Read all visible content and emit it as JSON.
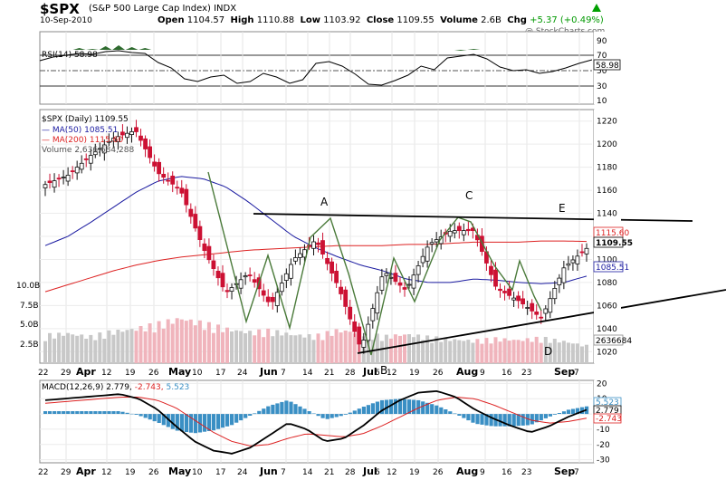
{
  "header": {
    "symbol": "$SPX",
    "name": "(S&P 500 Large Cap Index)",
    "exchange": "INDX",
    "date": "10-Sep-2010",
    "open_label": "Open",
    "open": "1104.57",
    "high_label": "High",
    "high": "1110.88",
    "low_label": "Low",
    "low": "1103.92",
    "close_label": "Close",
    "close": "1109.55",
    "volume_label": "Volume",
    "volume": "2.6B",
    "chg_label": "Chg",
    "chg": "+5.37 (+0.49%)",
    "watermark": "@ StockCharts.com",
    "up_color": "#00a000"
  },
  "rsi": {
    "legend": "RSI(14) 58.98",
    "value_label": "58.98",
    "ticks": [
      "90",
      "70",
      "50",
      "30",
      "10"
    ]
  },
  "main": {
    "legend": "$SPX (Daily) 1109.55",
    "ma50_legend": "MA(50) 1085.51",
    "ma200_legend": "MA(200) 1115.60",
    "volume_legend": "Volume 2,636,684,288",
    "price_ticks": [
      "1220",
      "1200",
      "1180",
      "1160",
      "1140",
      "1120",
      "1100",
      "1080",
      "1060",
      "1040",
      "1020"
    ],
    "volume_ticks": [
      "10.0B",
      "7.5B",
      "5.0B",
      "2.5B"
    ],
    "ma200_label": "1115.60",
    "close_label": "1109.55",
    "ma50_label": "1085.51",
    "volume_label": "2636684",
    "annotations": [
      "A",
      "B",
      "C",
      "D",
      "E"
    ],
    "colors": {
      "ma50": "#1a1aa0",
      "ma200": "#dd2222",
      "up": "#111111",
      "down": "#cc1133",
      "pattern": "#4a7a3a"
    }
  },
  "macd": {
    "legend": "MACD(12,26,9) 2.779, -2.743, 5.523",
    "legend_name": "MACD(12,26,9)",
    "legend_v1": "2.779,",
    "legend_v2": "-2.743,",
    "legend_v3": "5.523",
    "ticks": [
      "20",
      "10",
      "0",
      "-10",
      "-20",
      "-30"
    ],
    "hist_label": "5.523",
    "macd_label": "2.779",
    "signal_label": "-2.743"
  },
  "x_axis_labels": [
    "22",
    "29",
    "Apr",
    "12",
    "19",
    "26",
    "May",
    "10",
    "17",
    "24",
    "Jun",
    "7",
    "14",
    "21",
    "28",
    "Jul",
    "6",
    "12",
    "19",
    "26",
    "Aug",
    "9",
    "16",
    "23",
    "Sep",
    "7"
  ],
  "chart_data": [
    {
      "type": "line",
      "title": "RSI(14) 58.98",
      "ylim": [
        10,
        90
      ],
      "series": [
        {
          "name": "RSI(14)",
          "values": [
            58,
            62,
            64,
            66,
            65,
            68,
            69,
            67,
            66,
            56,
            50,
            38,
            35,
            40,
            42,
            33,
            35,
            44,
            40,
            33,
            37,
            55,
            57,
            52,
            43,
            32,
            31,
            36,
            42,
            52,
            48,
            61,
            63,
            65,
            60,
            51,
            47,
            48,
            44,
            46,
            50,
            55,
            59
          ]
        }
      ]
    },
    {
      "type": "line",
      "title": "$SPX (Daily) 1109.55",
      "ylim": [
        1010,
        1230
      ],
      "x": [
        "Mar 22",
        "Mar 29",
        "Apr 12",
        "Apr 19",
        "Apr 26",
        "May 3",
        "May 10",
        "May 17",
        "May 24",
        "Jun 1",
        "Jun 7",
        "Jun 14",
        "Jun 21",
        "Jun 28",
        "Jul 6",
        "Jul 12",
        "Jul 19",
        "Jul 26",
        "Aug 2",
        "Aug 9",
        "Aug 16",
        "Aug 23",
        "Aug 30",
        "Sep 7",
        "Sep 10"
      ],
      "series": [
        {
          "name": "$SPX",
          "values": [
            1165,
            1173,
            1190,
            1205,
            1212,
            1175,
            1160,
            1110,
            1071,
            1088,
            1060,
            1100,
            1117,
            1076,
            1022,
            1090,
            1073,
            1113,
            1125,
            1125,
            1075,
            1064,
            1049,
            1093,
            1109.55
          ]
        },
        {
          "name": "MA(50)",
          "values": [
            1112,
            1120,
            1132,
            1145,
            1158,
            1168,
            1172,
            1170,
            1163,
            1150,
            1135,
            1120,
            1110,
            1102,
            1095,
            1090,
            1083,
            1080,
            1080,
            1083,
            1082,
            1080,
            1079,
            1080,
            1085.51
          ]
        },
        {
          "name": "MA(200)",
          "values": [
            1072,
            1078,
            1084,
            1090,
            1095,
            1099,
            1102,
            1104,
            1106,
            1108,
            1109,
            1110,
            1111,
            1112,
            1112,
            1112,
            1113,
            1113,
            1114,
            1115,
            1115,
            1115,
            1116,
            1116,
            1115.6
          ]
        }
      ]
    },
    {
      "type": "bar",
      "title": "Volume 2,636,684,288",
      "ylim": [
        0,
        12.5
      ],
      "values": [
        4.2,
        4.5,
        4.0,
        4.8,
        5.2,
        5.9,
        6.8,
        6.0,
        5.2,
        4.7,
        4.9,
        4.3,
        4.1,
        5.0,
        4.6,
        4.0,
        4.4,
        3.9,
        3.6,
        3.4,
        3.7,
        3.5,
        3.8,
        3.3,
        2.64
      ]
    },
    {
      "type": "line",
      "title": "MACD(12,26,9) 2.779, -2.743, 5.523",
      "ylim": [
        -32,
        22
      ],
      "series": [
        {
          "name": "MACD",
          "values": [
            9,
            10,
            11,
            12,
            13,
            10,
            3,
            -8,
            -18,
            -24,
            -26,
            -22,
            -14,
            -6,
            -10,
            -18,
            -16,
            -8,
            2,
            9,
            14,
            15,
            11,
            3,
            -3,
            -8,
            -12,
            -8,
            -2,
            2.779
          ]
        },
        {
          "name": "Signal",
          "values": [
            7,
            8,
            9,
            10,
            11,
            11,
            9,
            4,
            -4,
            -12,
            -18,
            -21,
            -20,
            -16,
            -13,
            -14,
            -15,
            -13,
            -8,
            -2,
            4,
            9,
            11,
            10,
            6,
            1,
            -4,
            -6,
            -5,
            -2.743
          ]
        }
      ]
    }
  ]
}
